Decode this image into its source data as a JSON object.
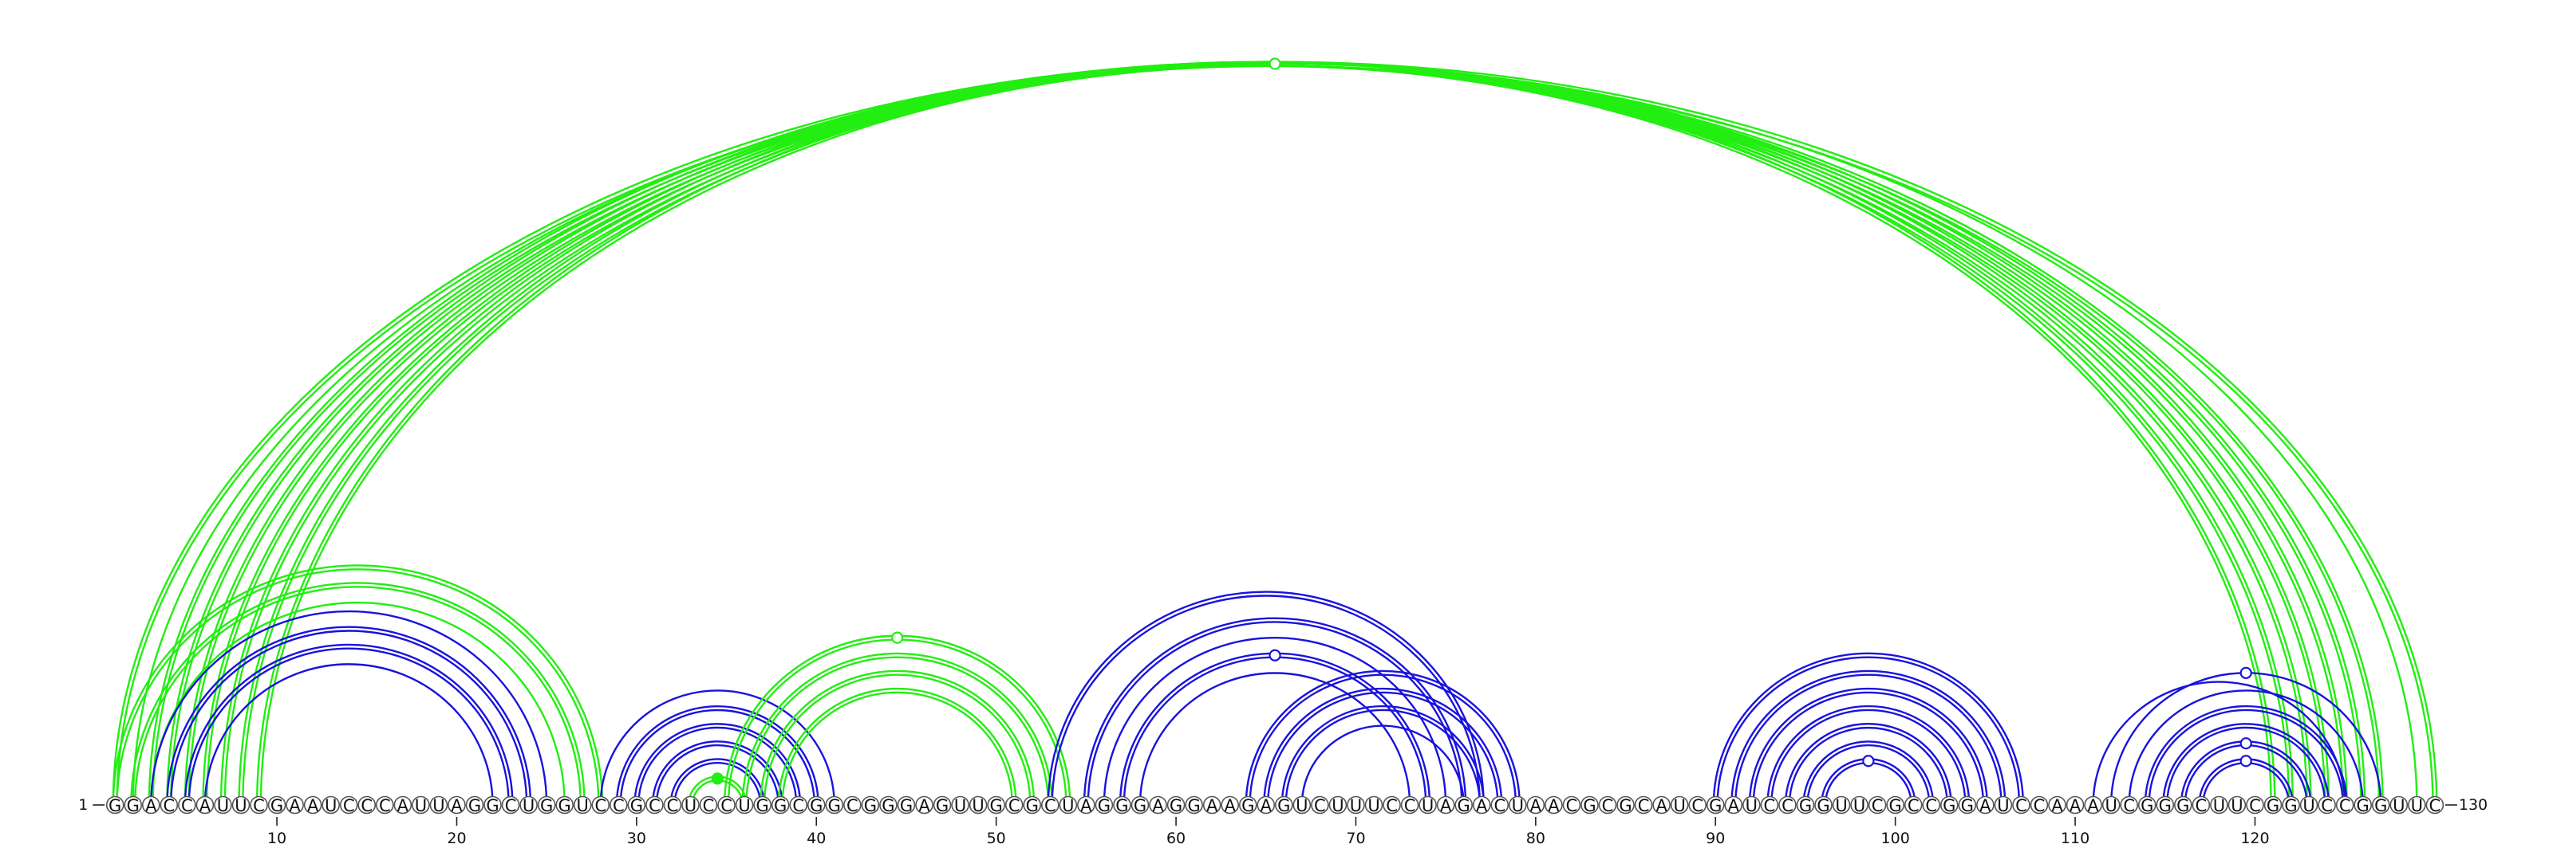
{
  "sequence": "GGACCAUUCGAAUCCCAUUAGGCUGGUCCGCCUCCUGGCGGCGGGAGUUGCGCUAGGGAGGAAGAGUCUUUCCUAGACUAACGCGCAUCGAUCCGGUUCGCCGGAUCCAAAUCGGGCUUCGGUCCGGUUC",
  "length": 130,
  "start_label": "1",
  "end_label": "130",
  "ticks": [
    10,
    20,
    30,
    40,
    50,
    60,
    70,
    80,
    90,
    100,
    110,
    120
  ],
  "colors": {
    "green": "#22ee11",
    "blue": "#1a12dd",
    "outline": "#555555"
  },
  "arcs": [
    {
      "i": 1,
      "j": 130,
      "color": "green",
      "stroke": "double"
    },
    {
      "i": 2,
      "j": 129,
      "color": "green",
      "stroke": "single",
      "marker": "open"
    },
    {
      "i": 3,
      "j": 127,
      "color": "green",
      "stroke": "double"
    },
    {
      "i": 4,
      "j": 126,
      "color": "green",
      "stroke": "double"
    },
    {
      "i": 5,
      "j": 125,
      "color": "green",
      "stroke": "double"
    },
    {
      "i": 6,
      "j": 124,
      "color": "green",
      "stroke": "double"
    },
    {
      "i": 7,
      "j": 123,
      "color": "green",
      "stroke": "double"
    },
    {
      "i": 8,
      "j": 122,
      "color": "green",
      "stroke": "double"
    },
    {
      "i": 9,
      "j": 121,
      "color": "green",
      "stroke": "double"
    },
    {
      "i": 1,
      "j": 28,
      "color": "green",
      "stroke": "double"
    },
    {
      "i": 2,
      "j": 27,
      "color": "green",
      "stroke": "double"
    },
    {
      "i": 3,
      "j": 26,
      "color": "green",
      "stroke": "single"
    },
    {
      "i": 3,
      "j": 25,
      "color": "blue",
      "stroke": "single"
    },
    {
      "i": 4,
      "j": 24,
      "color": "blue",
      "stroke": "double"
    },
    {
      "i": 5,
      "j": 23,
      "color": "blue",
      "stroke": "double"
    },
    {
      "i": 6,
      "j": 22,
      "color": "blue",
      "stroke": "single"
    },
    {
      "i": 28,
      "j": 41,
      "color": "blue",
      "stroke": "single"
    },
    {
      "i": 29,
      "j": 40,
      "color": "blue",
      "stroke": "double"
    },
    {
      "i": 30,
      "j": 39,
      "color": "blue",
      "stroke": "double"
    },
    {
      "i": 31,
      "j": 38,
      "color": "blue",
      "stroke": "double"
    },
    {
      "i": 32,
      "j": 37,
      "color": "blue",
      "stroke": "double"
    },
    {
      "i": 33,
      "j": 36,
      "color": "green",
      "stroke": "double",
      "marker": "filled"
    },
    {
      "i": 35,
      "j": 54,
      "color": "green",
      "stroke": "double",
      "marker": "open"
    },
    {
      "i": 36,
      "j": 53,
      "color": "green",
      "stroke": "double"
    },
    {
      "i": 37,
      "j": 52,
      "color": "green",
      "stroke": "double"
    },
    {
      "i": 38,
      "j": 51,
      "color": "green",
      "stroke": "double"
    },
    {
      "i": 53,
      "j": 77,
      "color": "blue",
      "stroke": "double"
    },
    {
      "i": 55,
      "j": 76,
      "color": "blue",
      "stroke": "double"
    },
    {
      "i": 56,
      "j": 75,
      "color": "blue",
      "stroke": "single"
    },
    {
      "i": 57,
      "j": 74,
      "color": "blue",
      "stroke": "double",
      "marker": "open"
    },
    {
      "i": 58,
      "j": 73,
      "color": "blue",
      "stroke": "single"
    },
    {
      "i": 64,
      "j": 79,
      "color": "blue",
      "stroke": "double"
    },
    {
      "i": 65,
      "j": 78,
      "color": "blue",
      "stroke": "double"
    },
    {
      "i": 66,
      "j": 77,
      "color": "blue",
      "stroke": "double"
    },
    {
      "i": 67,
      "j": 76,
      "color": "blue",
      "stroke": "single"
    },
    {
      "i": 90,
      "j": 107,
      "color": "blue",
      "stroke": "double"
    },
    {
      "i": 91,
      "j": 106,
      "color": "blue",
      "stroke": "double"
    },
    {
      "i": 92,
      "j": 105,
      "color": "blue",
      "stroke": "double"
    },
    {
      "i": 93,
      "j": 104,
      "color": "blue",
      "stroke": "double"
    },
    {
      "i": 94,
      "j": 103,
      "color": "blue",
      "stroke": "double"
    },
    {
      "i": 95,
      "j": 102,
      "color": "blue",
      "stroke": "double"
    },
    {
      "i": 96,
      "j": 101,
      "color": "blue",
      "stroke": "double",
      "marker": "open"
    },
    {
      "i": 111,
      "j": 125,
      "color": "blue",
      "stroke": "single"
    },
    {
      "i": 112,
      "j": 127,
      "color": "blue",
      "stroke": "single",
      "marker": "open"
    },
    {
      "i": 113,
      "j": 126,
      "color": "blue",
      "stroke": "single"
    },
    {
      "i": 114,
      "j": 125,
      "color": "blue",
      "stroke": "double"
    },
    {
      "i": 115,
      "j": 124,
      "color": "blue",
      "stroke": "double"
    },
    {
      "i": 116,
      "j": 123,
      "color": "blue",
      "stroke": "double",
      "marker": "open"
    },
    {
      "i": 117,
      "j": 122,
      "color": "blue",
      "stroke": "double",
      "marker": "open"
    }
  ]
}
